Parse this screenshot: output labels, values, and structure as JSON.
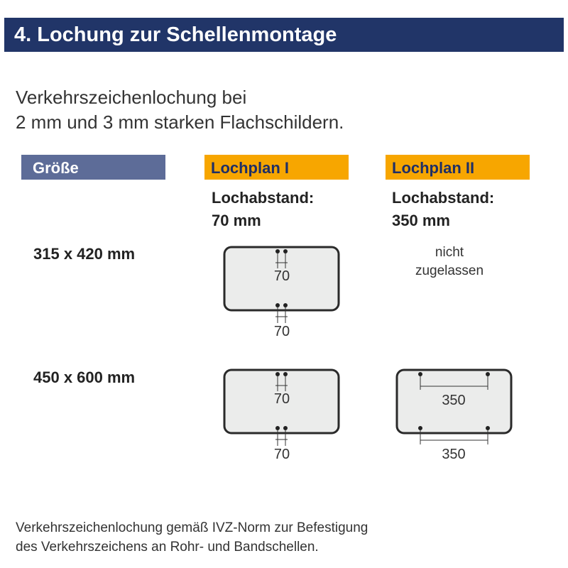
{
  "title": "4. Lochung zur Schellenmontage",
  "intro": [
    "Verkehrszeichenlochung bei",
    "2 mm und 3 mm starken Flachschildern."
  ],
  "columns": {
    "size": "Größe",
    "plan1": {
      "label": "Lochplan I",
      "distance_label": "Lochabstand:",
      "distance": "70 mm"
    },
    "plan2": {
      "label": "Lochplan II",
      "distance_label": "Lochabstand:",
      "distance": "350 mm"
    }
  },
  "rows": [
    {
      "size": "315 x 420 mm",
      "plan1_dim": "70",
      "plan2": [
        "nicht",
        "zugelassen"
      ]
    },
    {
      "size": "450 x 600 mm",
      "plan1_dim": "70",
      "plan2_dim": "350"
    }
  ],
  "footer": [
    "Verkehrszeichenlochung gemäß IVZ-Norm zur Befestigung",
    "des Verkehrszeichens an Rohr- und Bandschellen."
  ],
  "colors": {
    "header": "#213568",
    "size_header": "#5d6c98",
    "plan_header": "#f7a600",
    "plate": "#ebeceb"
  }
}
